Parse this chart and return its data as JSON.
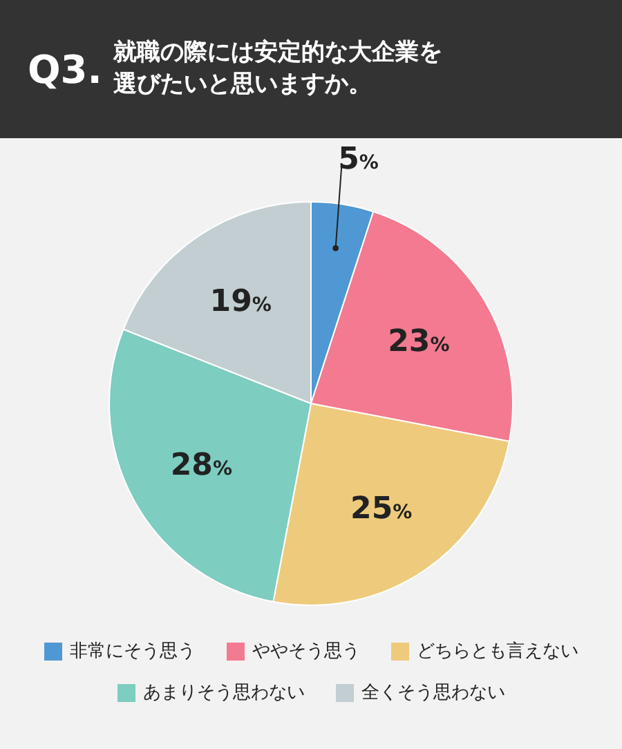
{
  "chart_data": {
    "type": "pie",
    "title": "Q3.",
    "subtitle": "就職の際には安定的な大企業を選びたいと思いますか。",
    "categories": [
      "非常にそう思う",
      "ややそう思う",
      "どちらとも言えない",
      "あまりそう思わない",
      "全くそう思わない"
    ],
    "values": [
      5,
      23,
      25,
      28,
      19
    ],
    "colors": [
      "#4f98d3",
      "#f37a90",
      "#eecb7c",
      "#7dcdc0",
      "#c2ced1"
    ],
    "value_labels": [
      "5%",
      "23%",
      "25%",
      "28%",
      "19%"
    ],
    "legend": "bottom"
  }
}
